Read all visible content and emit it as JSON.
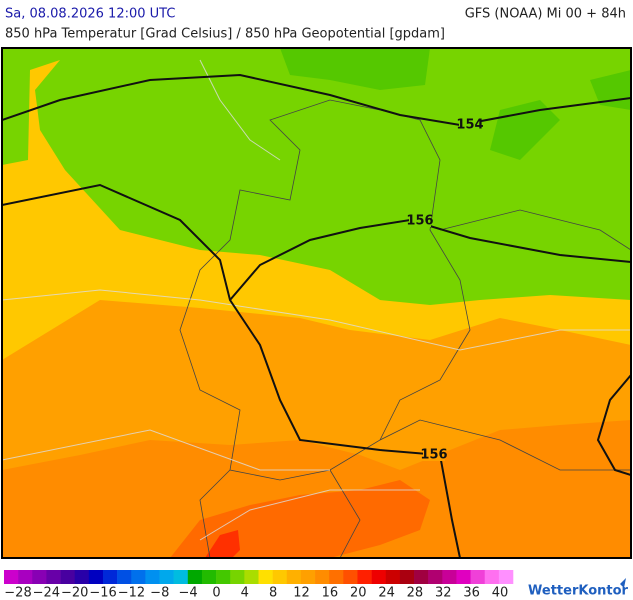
{
  "header": {
    "left": "Sa, 08.08.2026 12:00 UTC",
    "right": "GFS (NOAA) Mi 00 + 84h",
    "subtitle": "850 hPa Temperatur [Grad Celsius] / 850 hPa Geopotential [gpdam]"
  },
  "map": {
    "contour_labels": [
      "154",
      "156",
      "156"
    ]
  },
  "colorbar": {
    "colors": [
      "#cc00cc",
      "#a800c0",
      "#8800b4",
      "#6800a8",
      "#4800a0",
      "#2800a8",
      "#0000c0",
      "#0028d8",
      "#0050e4",
      "#0070ec",
      "#0090f0",
      "#00a8ec",
      "#00bce0",
      "#00a800",
      "#22bb00",
      "#44c800",
      "#77d400",
      "#aadd00",
      "#ffe000",
      "#ffc800",
      "#ffb000",
      "#ffa000",
      "#ff8c00",
      "#ff7000",
      "#ff5000",
      "#ff2000",
      "#ee0000",
      "#cc0000",
      "#aa0010",
      "#a00040",
      "#b00070",
      "#c80098",
      "#e000c0",
      "#f040d8",
      "#ff70f0",
      "#ff90ff"
    ],
    "labels": [
      "−28",
      "−24",
      "−20",
      "−16",
      "−12",
      "−8",
      "−4",
      "0",
      "4",
      "8",
      "12",
      "16",
      "20",
      "24",
      "28",
      "32",
      "36",
      "40"
    ]
  },
  "brand": "WetterKontor"
}
